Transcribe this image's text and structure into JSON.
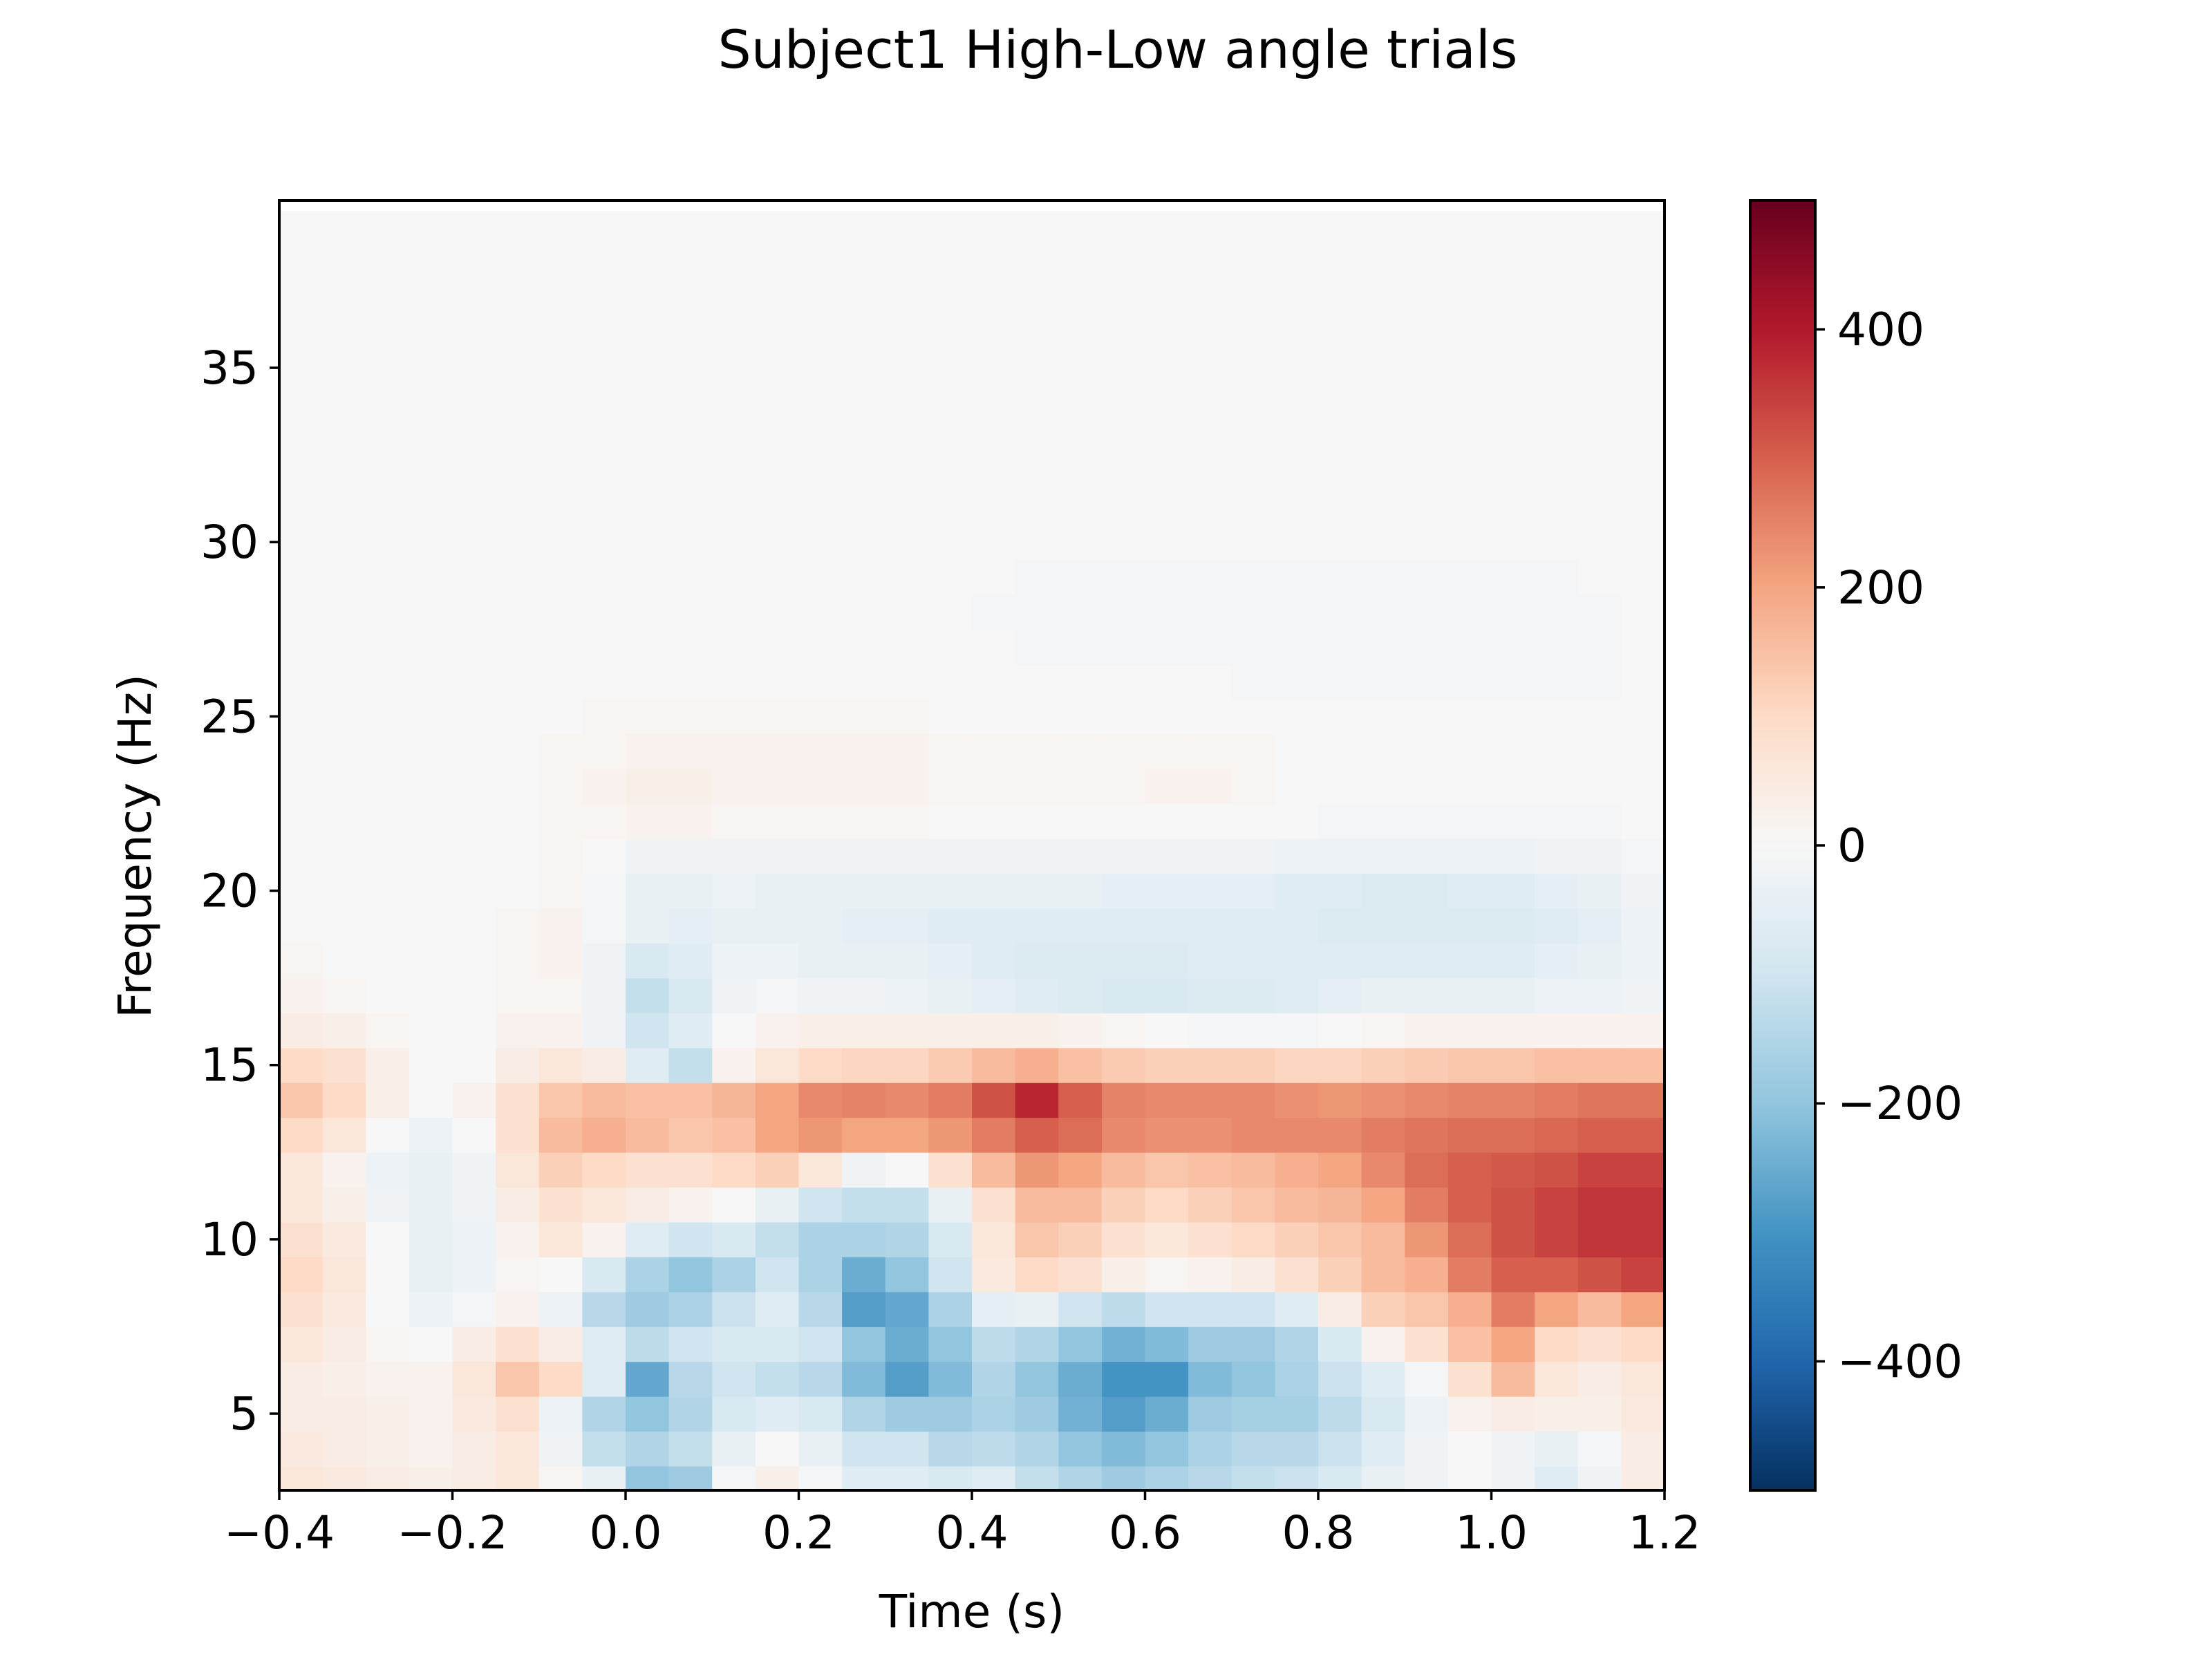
{
  "chart_data": {
    "type": "heatmap",
    "title": "Subject1 High-Low angle trials",
    "xlabel": "Time (s)",
    "ylabel": "Frequency (Hz)",
    "xlim": [
      -0.4,
      1.2
    ],
    "ylim": [
      2.8,
      39.8
    ],
    "x_ticks": [
      -0.4,
      -0.2,
      0.0,
      0.2,
      0.4,
      0.6,
      0.8,
      1.0,
      1.2
    ],
    "x_tick_labels": [
      "−0.4",
      "−0.2",
      "0.0",
      "0.2",
      "0.4",
      "0.6",
      "0.8",
      "1.0",
      "1.2"
    ],
    "y_ticks": [
      5,
      10,
      15,
      20,
      25,
      30,
      35
    ],
    "y_tick_labels": [
      "5",
      "10",
      "15",
      "20",
      "25",
      "30",
      "35"
    ],
    "colorbar": {
      "colormap": "RdBu_r",
      "vmin": -500,
      "vmax": 500,
      "ticks": [
        -400,
        -200,
        0,
        200,
        400
      ],
      "tick_labels": [
        "−400",
        "−200",
        "0",
        "200",
        "400"
      ]
    },
    "grid": false,
    "x": [
      -0.4,
      -0.35,
      -0.3,
      -0.25,
      -0.2,
      -0.15,
      -0.1,
      -0.05,
      0.0,
      0.05,
      0.1,
      0.15,
      0.2,
      0.25,
      0.3,
      0.35,
      0.4,
      0.45,
      0.5,
      0.55,
      0.6,
      0.65,
      0.7,
      0.75,
      0.8,
      0.85,
      0.9,
      0.95,
      1.0,
      1.05,
      1.1,
      1.15
    ],
    "y": [
      3,
      4,
      5,
      6,
      7,
      8,
      9,
      10,
      11,
      12,
      13,
      14,
      15,
      16,
      17,
      18,
      19,
      20,
      21,
      22,
      23,
      24,
      25,
      26,
      27,
      28,
      29,
      30,
      31,
      32,
      33,
      34,
      35,
      36,
      37,
      38,
      39
    ],
    "z_rows_by_frequency": [
      [
        60,
        50,
        40,
        30,
        40,
        60,
        10,
        -40,
        -200,
        -180,
        -10,
        30,
        -10,
        -60,
        -60,
        -80,
        -60,
        -120,
        -150,
        -180,
        -160,
        -140,
        -120,
        -110,
        -80,
        -40,
        -20,
        0,
        -20,
        -60,
        -20,
        40
      ],
      [
        50,
        40,
        30,
        20,
        40,
        60,
        -20,
        -120,
        -150,
        -120,
        -40,
        0,
        -40,
        -100,
        -100,
        -140,
        -130,
        -150,
        -200,
        -220,
        -200,
        -160,
        -140,
        -140,
        -110,
        -60,
        -20,
        0,
        -20,
        -40,
        -10,
        40
      ],
      [
        40,
        40,
        30,
        20,
        50,
        80,
        -30,
        -150,
        -200,
        -150,
        -80,
        -60,
        -80,
        -150,
        -180,
        -180,
        -160,
        -180,
        -240,
        -280,
        -250,
        -180,
        -170,
        -170,
        -130,
        -80,
        -30,
        20,
        40,
        30,
        30,
        50
      ],
      [
        40,
        30,
        20,
        20,
        60,
        140,
        100,
        -60,
        -260,
        -140,
        -100,
        -120,
        -140,
        -220,
        -280,
        -220,
        -150,
        -200,
        -250,
        -300,
        -300,
        -220,
        -200,
        -160,
        -110,
        -60,
        -10,
        80,
        160,
        60,
        40,
        60
      ],
      [
        60,
        40,
        10,
        0,
        40,
        80,
        40,
        -60,
        -130,
        -100,
        -80,
        -80,
        -100,
        -200,
        -250,
        -200,
        -130,
        -150,
        -200,
        -240,
        -220,
        -180,
        -180,
        -150,
        -80,
        20,
        80,
        150,
        200,
        100,
        80,
        100
      ],
      [
        80,
        50,
        0,
        -30,
        -10,
        20,
        -30,
        -140,
        -180,
        -160,
        -110,
        -60,
        -140,
        -280,
        -260,
        -160,
        -50,
        -40,
        -100,
        -130,
        -100,
        -100,
        -100,
        -60,
        40,
        120,
        140,
        180,
        260,
        200,
        160,
        200
      ],
      [
        100,
        60,
        0,
        -40,
        -30,
        10,
        0,
        -80,
        -160,
        -200,
        -160,
        -100,
        -160,
        -250,
        -200,
        -100,
        50,
        100,
        80,
        30,
        10,
        20,
        40,
        80,
        120,
        160,
        180,
        260,
        300,
        300,
        320,
        340
      ],
      [
        80,
        50,
        0,
        -40,
        -30,
        20,
        60,
        20,
        -60,
        -100,
        -80,
        -120,
        -160,
        -160,
        -150,
        -80,
        60,
        140,
        120,
        80,
        60,
        80,
        100,
        120,
        140,
        160,
        220,
        280,
        320,
        340,
        360,
        360
      ],
      [
        60,
        30,
        -20,
        -40,
        -20,
        40,
        80,
        60,
        40,
        20,
        0,
        -40,
        -100,
        -120,
        -120,
        -40,
        80,
        160,
        160,
        120,
        100,
        120,
        140,
        160,
        170,
        200,
        260,
        300,
        320,
        340,
        360,
        360
      ],
      [
        60,
        20,
        -30,
        -40,
        -20,
        60,
        120,
        100,
        80,
        80,
        100,
        120,
        60,
        -20,
        0,
        80,
        160,
        220,
        200,
        160,
        140,
        150,
        160,
        180,
        200,
        240,
        280,
        300,
        310,
        320,
        340,
        340
      ],
      [
        100,
        60,
        0,
        -30,
        0,
        80,
        160,
        180,
        160,
        140,
        150,
        200,
        220,
        200,
        200,
        220,
        260,
        300,
        280,
        240,
        230,
        230,
        240,
        240,
        240,
        260,
        270,
        280,
        280,
        290,
        300,
        300
      ],
      [
        140,
        100,
        30,
        0,
        20,
        80,
        140,
        160,
        150,
        150,
        170,
        200,
        240,
        250,
        240,
        260,
        320,
        380,
        300,
        250,
        240,
        240,
        240,
        230,
        220,
        230,
        240,
        250,
        250,
        260,
        270,
        270
      ],
      [
        100,
        80,
        30,
        0,
        0,
        40,
        60,
        40,
        -60,
        -120,
        20,
        60,
        100,
        110,
        110,
        130,
        160,
        180,
        150,
        130,
        120,
        120,
        120,
        110,
        110,
        120,
        130,
        140,
        140,
        150,
        150,
        150
      ],
      [
        40,
        30,
        10,
        0,
        0,
        20,
        20,
        -20,
        -100,
        -60,
        0,
        20,
        30,
        30,
        30,
        30,
        30,
        30,
        20,
        10,
        0,
        -10,
        -10,
        -10,
        0,
        10,
        20,
        20,
        20,
        20,
        20,
        20
      ],
      [
        20,
        10,
        0,
        0,
        0,
        10,
        10,
        -20,
        -120,
        -80,
        -20,
        -10,
        -20,
        -20,
        -30,
        -40,
        -50,
        -60,
        -70,
        -80,
        -80,
        -70,
        -70,
        -60,
        -50,
        -40,
        -40,
        -40,
        -40,
        -30,
        -30,
        -20
      ],
      [
        10,
        0,
        0,
        0,
        0,
        10,
        20,
        -20,
        -80,
        -60,
        -30,
        -30,
        -40,
        -40,
        -40,
        -50,
        -60,
        -70,
        -70,
        -70,
        -70,
        -60,
        -60,
        -60,
        -60,
        -60,
        -60,
        -60,
        -60,
        -50,
        -40,
        -30
      ],
      [
        0,
        0,
        0,
        0,
        0,
        10,
        20,
        -10,
        -40,
        -50,
        -40,
        -40,
        -40,
        -50,
        -50,
        -60,
        -60,
        -60,
        -60,
        -60,
        -60,
        -60,
        -60,
        -60,
        -70,
        -70,
        -70,
        -70,
        -70,
        -60,
        -50,
        -30
      ],
      [
        0,
        0,
        0,
        0,
        0,
        0,
        10,
        -10,
        -40,
        -40,
        -30,
        -40,
        -40,
        -40,
        -40,
        -40,
        -40,
        -40,
        -40,
        -50,
        -50,
        -50,
        -50,
        -60,
        -60,
        -70,
        -70,
        -60,
        -60,
        -50,
        -40,
        -20
      ],
      [
        0,
        0,
        0,
        0,
        0,
        0,
        10,
        0,
        -20,
        -20,
        -20,
        -20,
        -20,
        -20,
        -20,
        -20,
        -20,
        -20,
        -20,
        -20,
        -20,
        -20,
        -20,
        -30,
        -30,
        -30,
        -30,
        -30,
        -30,
        -20,
        -20,
        -10
      ],
      [
        0,
        0,
        0,
        0,
        0,
        0,
        10,
        10,
        20,
        20,
        10,
        10,
        10,
        10,
        10,
        0,
        0,
        0,
        0,
        0,
        0,
        0,
        0,
        0,
        -10,
        -10,
        -10,
        -10,
        -10,
        -10,
        -10,
        0
      ],
      [
        0,
        0,
        0,
        0,
        0,
        0,
        10,
        20,
        30,
        30,
        20,
        20,
        20,
        20,
        20,
        10,
        10,
        10,
        10,
        10,
        20,
        20,
        10,
        0,
        0,
        0,
        0,
        0,
        0,
        0,
        0,
        0
      ],
      [
        0,
        0,
        0,
        0,
        0,
        0,
        10,
        10,
        20,
        20,
        20,
        20,
        20,
        20,
        20,
        10,
        10,
        10,
        10,
        10,
        10,
        10,
        10,
        0,
        0,
        0,
        0,
        0,
        0,
        0,
        0,
        0
      ],
      [
        0,
        0,
        0,
        0,
        0,
        0,
        0,
        10,
        10,
        10,
        10,
        10,
        10,
        10,
        10,
        0,
        0,
        0,
        0,
        0,
        0,
        0,
        0,
        0,
        0,
        0,
        0,
        0,
        0,
        0,
        0,
        0
      ],
      [
        0,
        0,
        0,
        0,
        0,
        0,
        0,
        0,
        0,
        0,
        0,
        0,
        0,
        0,
        0,
        0,
        0,
        0,
        0,
        0,
        0,
        0,
        -10,
        -10,
        -10,
        -10,
        -10,
        -10,
        -10,
        -10,
        -10,
        0
      ],
      [
        0,
        0,
        0,
        0,
        0,
        0,
        0,
        0,
        0,
        0,
        0,
        0,
        0,
        0,
        0,
        0,
        0,
        -10,
        -10,
        -10,
        -10,
        -10,
        -10,
        -10,
        -10,
        -10,
        -10,
        -10,
        -10,
        -10,
        -10,
        0
      ],
      [
        0,
        0,
        0,
        0,
        0,
        0,
        0,
        0,
        0,
        0,
        0,
        0,
        0,
        0,
        0,
        0,
        -10,
        -10,
        -10,
        -10,
        -10,
        -10,
        -10,
        -10,
        -10,
        -10,
        -10,
        -10,
        -10,
        -10,
        -10,
        0
      ],
      [
        0,
        0,
        0,
        0,
        0,
        0,
        0,
        0,
        0,
        0,
        0,
        0,
        0,
        0,
        0,
        0,
        0,
        -10,
        -10,
        -10,
        -10,
        -10,
        -10,
        -10,
        -10,
        -10,
        -10,
        -10,
        -10,
        -10,
        0,
        0
      ],
      [
        0,
        0,
        0,
        0,
        0,
        0,
        0,
        0,
        0,
        0,
        0,
        0,
        0,
        0,
        0,
        0,
        0,
        0,
        0,
        0,
        0,
        0,
        0,
        0,
        0,
        0,
        0,
        0,
        0,
        0,
        0,
        0
      ],
      [
        0,
        0,
        0,
        0,
        0,
        0,
        0,
        0,
        0,
        0,
        0,
        0,
        0,
        0,
        0,
        0,
        0,
        0,
        0,
        0,
        0,
        0,
        0,
        0,
        0,
        0,
        0,
        0,
        0,
        0,
        0,
        0
      ],
      [
        0,
        0,
        0,
        0,
        0,
        0,
        0,
        0,
        0,
        0,
        0,
        0,
        0,
        0,
        0,
        0,
        0,
        0,
        0,
        0,
        0,
        0,
        0,
        0,
        0,
        0,
        0,
        0,
        0,
        0,
        0,
        0
      ],
      [
        0,
        0,
        0,
        0,
        0,
        0,
        0,
        0,
        0,
        0,
        0,
        0,
        0,
        0,
        0,
        0,
        0,
        0,
        0,
        0,
        0,
        0,
        0,
        0,
        0,
        0,
        0,
        0,
        0,
        0,
        0,
        0
      ],
      [
        0,
        0,
        0,
        0,
        0,
        0,
        0,
        0,
        0,
        0,
        0,
        0,
        0,
        0,
        0,
        0,
        0,
        0,
        0,
        0,
        0,
        0,
        0,
        0,
        0,
        0,
        0,
        0,
        0,
        0,
        0,
        0
      ],
      [
        0,
        0,
        0,
        0,
        0,
        0,
        0,
        0,
        0,
        0,
        0,
        0,
        0,
        0,
        0,
        0,
        0,
        0,
        0,
        0,
        0,
        0,
        0,
        0,
        0,
        0,
        0,
        0,
        0,
        0,
        0,
        0
      ],
      [
        0,
        0,
        0,
        0,
        0,
        0,
        0,
        0,
        0,
        0,
        0,
        0,
        0,
        0,
        0,
        0,
        0,
        0,
        0,
        0,
        0,
        0,
        0,
        0,
        0,
        0,
        0,
        0,
        0,
        0,
        0,
        0
      ],
      [
        0,
        0,
        0,
        0,
        0,
        0,
        0,
        0,
        0,
        0,
        0,
        0,
        0,
        0,
        0,
        0,
        0,
        0,
        0,
        0,
        0,
        0,
        0,
        0,
        0,
        0,
        0,
        0,
        0,
        0,
        0,
        0
      ],
      [
        0,
        0,
        0,
        0,
        0,
        0,
        0,
        0,
        0,
        0,
        0,
        0,
        0,
        0,
        0,
        0,
        0,
        0,
        0,
        0,
        0,
        0,
        0,
        0,
        0,
        0,
        0,
        0,
        0,
        0,
        0,
        0
      ],
      [
        0,
        0,
        0,
        0,
        0,
        0,
        0,
        0,
        0,
        0,
        0,
        0,
        0,
        0,
        0,
        0,
        0,
        0,
        0,
        0,
        0,
        0,
        0,
        0,
        0,
        0,
        0,
        0,
        0,
        0,
        0,
        0
      ]
    ]
  }
}
